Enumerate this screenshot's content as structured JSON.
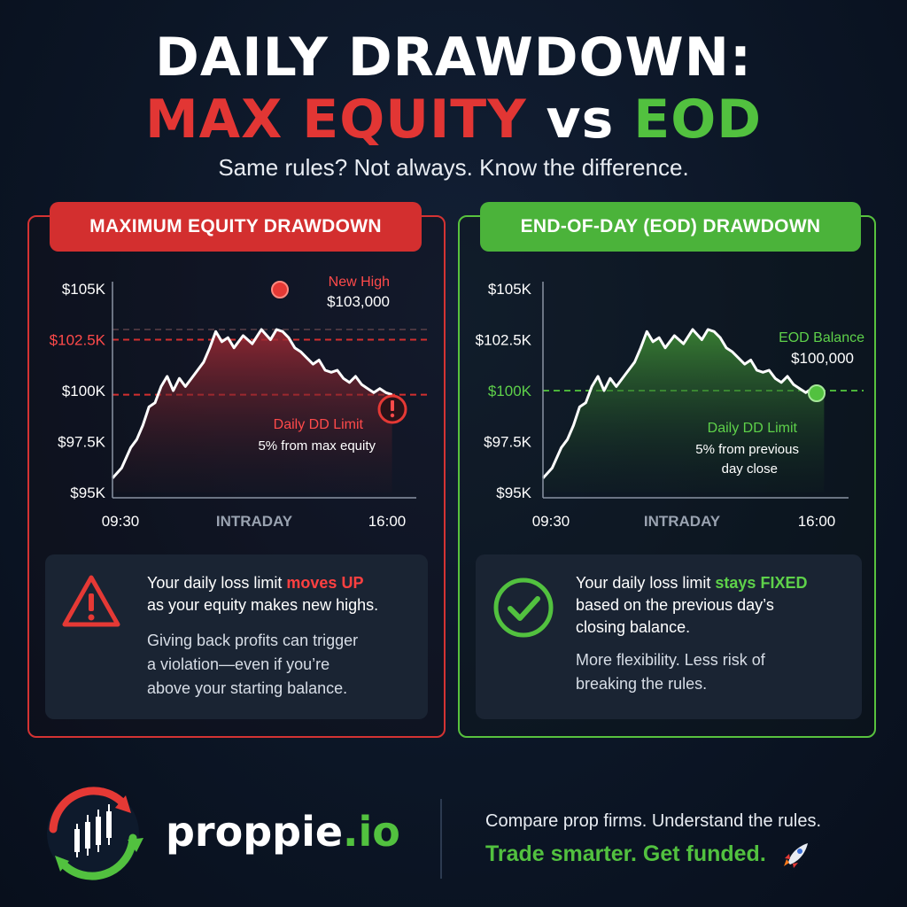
{
  "title": {
    "line1": "DAILY DRAWDOWN:",
    "line2_part1": "MAX EQUITY",
    "line2_part2": " vs ",
    "line2_part3": "EOD",
    "subtitle": "Same rules? Not always. Know the difference."
  },
  "colors": {
    "red": "#d32f2f",
    "green": "#4bb33a",
    "background": "#0c1626",
    "infobox": "#1a2433"
  },
  "left_panel": {
    "header": "MAXIMUM EQUITY DRAWDOWN",
    "annotation_high_label": "New High",
    "annotation_high_value": "$103,000",
    "annotation_limit_label": "Daily DD Limit",
    "annotation_limit_desc": "5% from max equity",
    "info_line1_pre": "Your daily loss limit ",
    "info_line1_hl": "moves UP",
    "info_line2": "as your equity makes new highs.",
    "info_sub1": "Giving back profits can trigger",
    "info_sub2": "a violation—even if you’re",
    "info_sub3": "above your starting balance.",
    "icon": "warning-triangle-icon"
  },
  "right_panel": {
    "header": "END-OF-DAY (EOD) DRAWDOWN",
    "annotation_eod_label": "EOD Balance",
    "annotation_eod_value": "$100,000",
    "annotation_limit_label": "Daily DD Limit",
    "annotation_limit_desc1": "5% from previous",
    "annotation_limit_desc2": "day close",
    "info_line1_pre": "Your daily loss limit ",
    "info_line1_hl": "stays FIXED",
    "info_line2": "based on the previous day’s",
    "info_line3": "closing balance.",
    "info_sub1": "More flexibility. Less risk of",
    "info_sub2": "breaking the rules.",
    "icon": "check-circle-icon"
  },
  "chart_data": [
    {
      "type": "area",
      "panel": "left",
      "y_ticks": [
        "$105K",
        "$102.5K",
        "$100K",
        "$97.5K",
        "$95K"
      ],
      "y_tick_values": [
        105000,
        102500,
        100000,
        97500,
        95000
      ],
      "highlighted_tick": "$102.5K",
      "ylim": [
        95000,
        105000
      ],
      "x_labels": [
        "09:30",
        "INTRADAY",
        "16:00"
      ],
      "xlim": [
        0,
        100
      ],
      "x": [
        0,
        3,
        6,
        8,
        10,
        12,
        14,
        16,
        18,
        20,
        22,
        24,
        27,
        30,
        32,
        34,
        36,
        38,
        40,
        43,
        46,
        49,
        52,
        54,
        56,
        58,
        60,
        62,
        64,
        66,
        68,
        70,
        72,
        74,
        76,
        78,
        80,
        82,
        84,
        86,
        88,
        90,
        92
      ],
      "y": [
        95700,
        96200,
        97200,
        97600,
        98300,
        99200,
        99400,
        100200,
        100700,
        100000,
        100600,
        100200,
        100800,
        101400,
        102100,
        102900,
        102400,
        102600,
        102100,
        102700,
        102300,
        103000,
        102500,
        103000,
        102900,
        102600,
        102100,
        101900,
        101600,
        101300,
        101500,
        101000,
        100900,
        101000,
        100600,
        100400,
        100700,
        100300,
        100100,
        99900,
        100100,
        99900,
        99800
      ],
      "lines": [
        {
          "value": 102500,
          "style": "dashed",
          "color": "#d32f2f"
        },
        {
          "value": 99800,
          "style": "dashed",
          "color": "#d32f2f"
        },
        {
          "value": 103000,
          "style": "dashed",
          "color": "#5a4048"
        }
      ],
      "markers": [
        {
          "x": 52,
          "y": 103000,
          "kind": "high-dot"
        },
        {
          "x": 97,
          "y": 99500,
          "kind": "alert"
        }
      ]
    },
    {
      "type": "area",
      "panel": "right",
      "y_ticks": [
        "$105K",
        "$102.5K",
        "$100K",
        "$97.5K",
        "$95K"
      ],
      "y_tick_values": [
        105000,
        102500,
        100000,
        97500,
        95000
      ],
      "highlighted_tick": "$100K",
      "ylim": [
        95000,
        105000
      ],
      "x_labels": [
        "09:30",
        "INTRADAY",
        "16:00"
      ],
      "xlim": [
        0,
        100
      ],
      "x": [
        0,
        3,
        6,
        8,
        10,
        12,
        14,
        16,
        18,
        20,
        22,
        24,
        27,
        30,
        32,
        34,
        36,
        38,
        40,
        43,
        46,
        49,
        52,
        54,
        56,
        58,
        60,
        62,
        64,
        66,
        68,
        70,
        72,
        74,
        76,
        78,
        80,
        82,
        84,
        86,
        88,
        90,
        92
      ],
      "y": [
        95700,
        96200,
        97200,
        97600,
        98300,
        99200,
        99400,
        100200,
        100700,
        100000,
        100600,
        100200,
        100800,
        101400,
        102100,
        102900,
        102400,
        102600,
        102100,
        102700,
        102300,
        103000,
        102500,
        103000,
        102900,
        102600,
        102100,
        101900,
        101600,
        101300,
        101500,
        101000,
        100900,
        101000,
        100600,
        100400,
        100700,
        100300,
        100100,
        99900,
        100100,
        99900,
        100000
      ],
      "lines": [
        {
          "value": 100000,
          "style": "dashed",
          "color": "#4bb33a"
        }
      ],
      "markers": [
        {
          "x": 92,
          "y": 100000,
          "kind": "eod-dot"
        }
      ]
    }
  ],
  "footer": {
    "brand_name": "proppie",
    "brand_tld": ".io",
    "tagline1": "Compare prop firms. Understand the rules.",
    "tagline2": "Trade smarter. Get funded.",
    "tagline2_icon": "rocket-icon"
  }
}
